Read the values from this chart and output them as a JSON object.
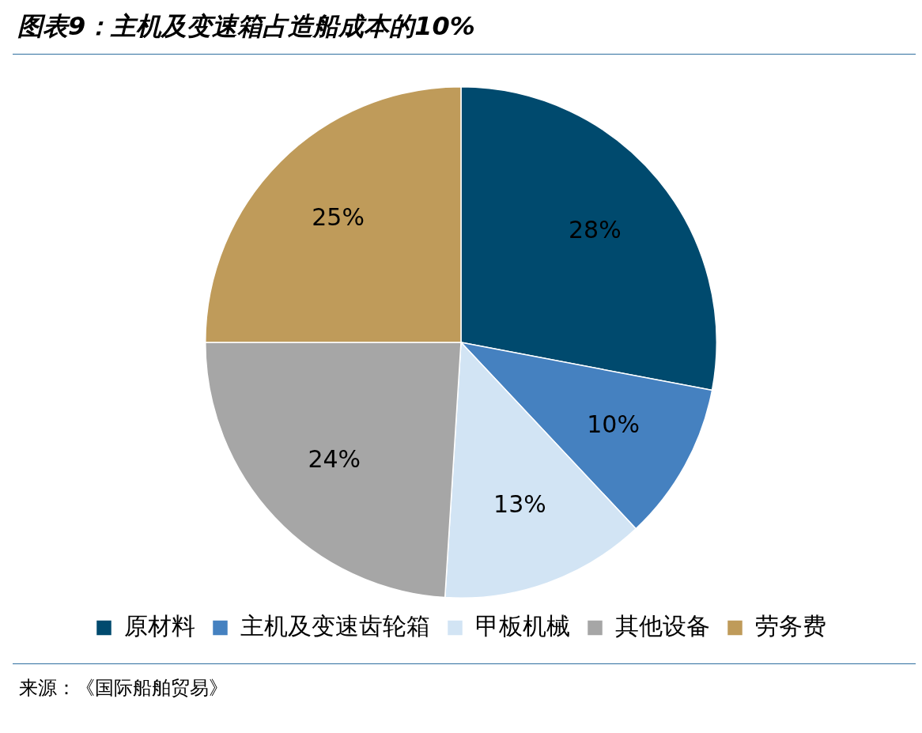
{
  "chart_data": {
    "type": "pie",
    "title": "图表9：主机及变速箱占造船成本的10%",
    "categories": [
      "原材料",
      "主机及变速齿轮箱",
      "甲板机械",
      "其他设备",
      "劳务费"
    ],
    "values": [
      28,
      10,
      13,
      24,
      25
    ],
    "colors": [
      "#004a6e",
      "#4581c0",
      "#d2e4f4",
      "#a6a6a6",
      "#bf9b5a"
    ],
    "value_labels": [
      "28%",
      "10%",
      "13%",
      "24%",
      "25%"
    ],
    "legend": "bottom",
    "annotations": [
      "来源：《国际船舶贸易》"
    ]
  }
}
